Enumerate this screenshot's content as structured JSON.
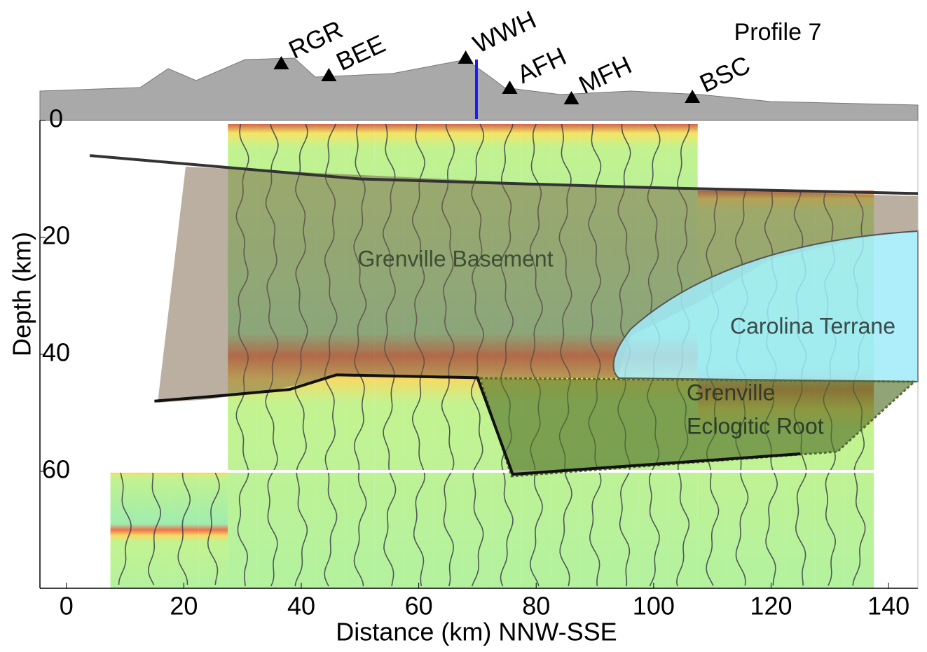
{
  "chart_data": {
    "type": "cross-section",
    "title": "Profile 7",
    "xlabel": "Distance (km) NNW-SSE",
    "ylabel": "Depth (km)",
    "xlim": [
      -4.5,
      145
    ],
    "xticks": [
      0,
      20,
      40,
      60,
      80,
      100,
      120,
      140
    ],
    "ylim": [
      0,
      80
    ],
    "yticks": [
      0,
      20,
      40,
      60
    ],
    "y_inverted": true,
    "stations": {
      "names": [
        "RGR",
        "BEE",
        "WWH",
        "AFH",
        "MFH",
        "BSC"
      ],
      "x": [
        36.6,
        44.7,
        68,
        75.5,
        86,
        106.6
      ]
    },
    "units": [
      {
        "lines": [
          "Grenville Basement"
        ],
        "color": "#3d4f33"
      },
      {
        "lines": [
          "Carolina Terrane"
        ],
        "color": "#3a4a4a"
      },
      {
        "lines": [
          "Grenville",
          "Eclogitic Root"
        ],
        "color": "#2f3d2a"
      }
    ],
    "moho": {
      "x": [
        15,
        27,
        38,
        46,
        70,
        76,
        125
      ],
      "depth": [
        48,
        47,
        46,
        43.5,
        44,
        60.5,
        57
      ]
    },
    "reflector": {
      "x": [
        4,
        50,
        100,
        145
      ],
      "depth": [
        6,
        10,
        11.5,
        12.5
      ]
    }
  }
}
